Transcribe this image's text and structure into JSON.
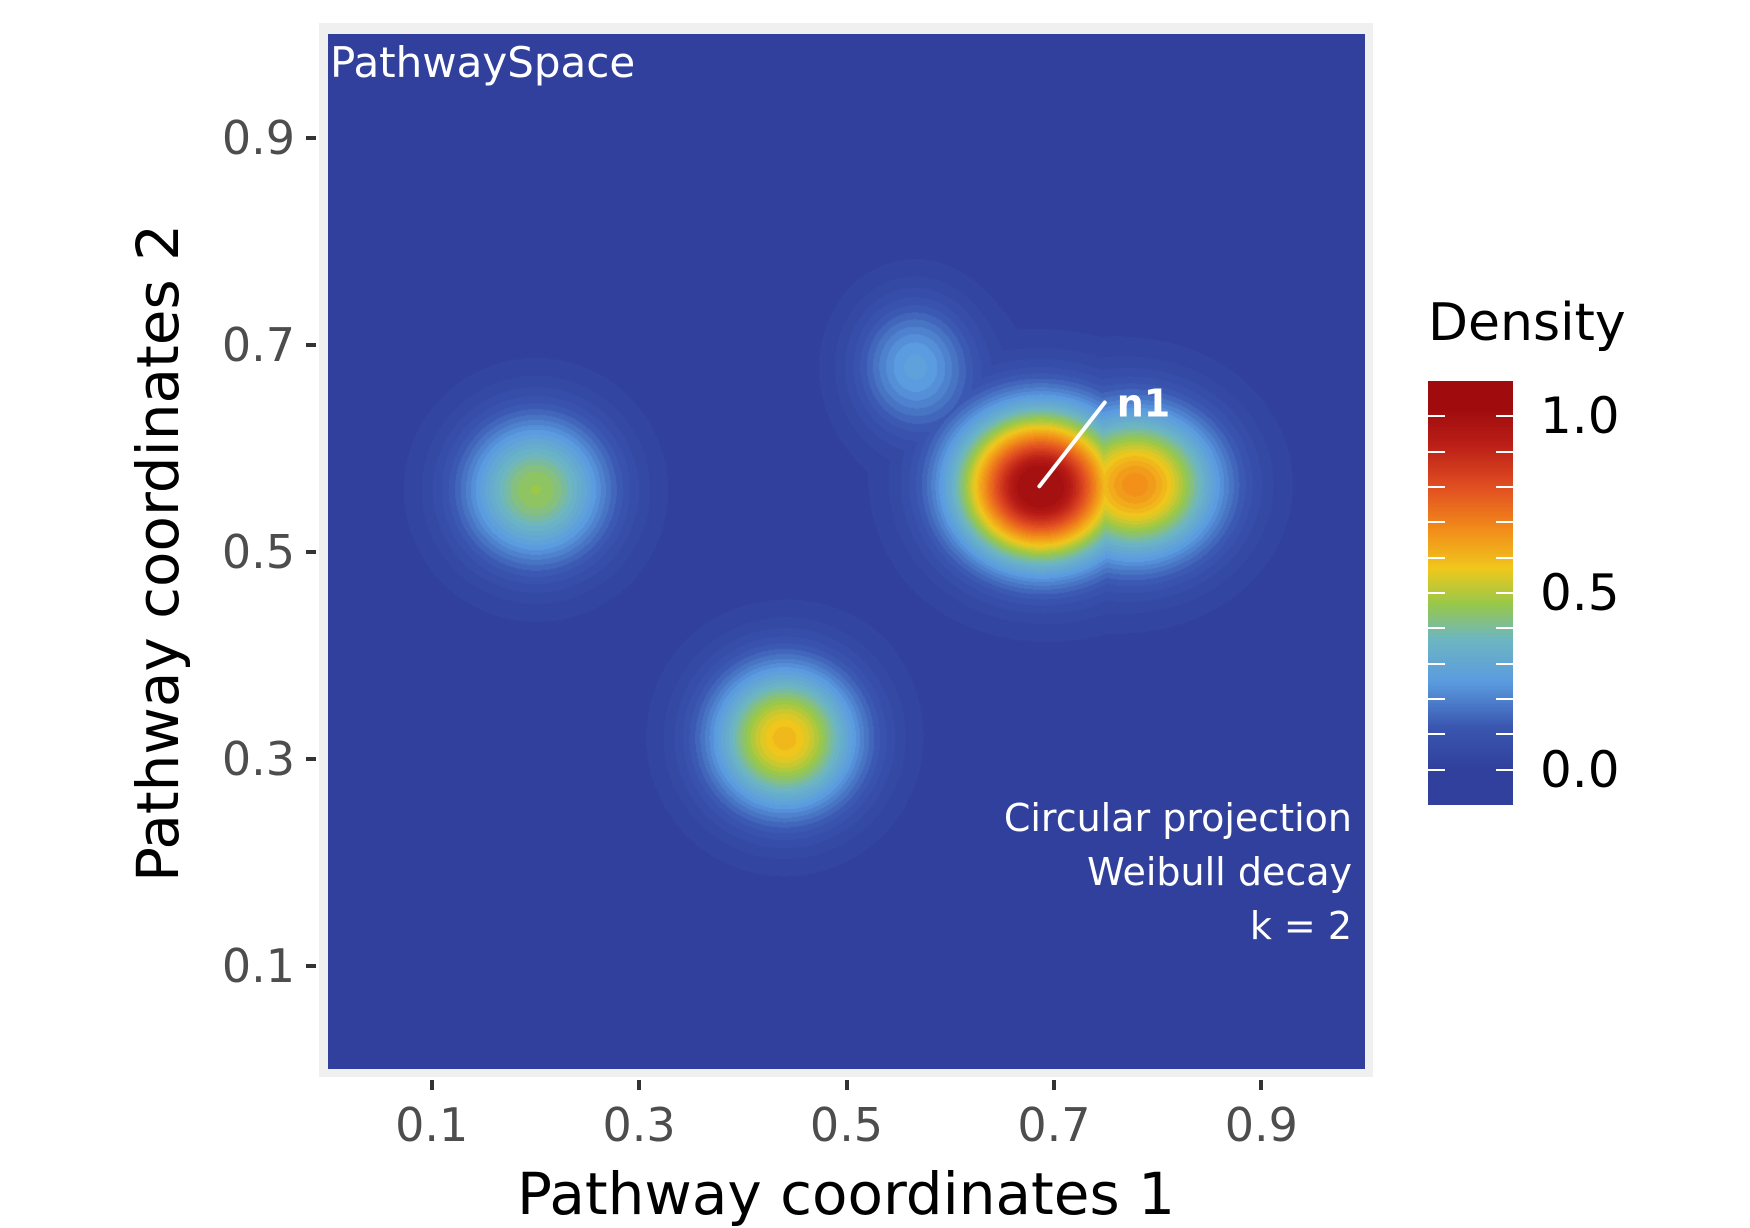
{
  "chart_data": {
    "type": "heatmap",
    "title": "PathwaySpace",
    "xlabel": "Pathway coordinates 1",
    "ylabel": "Pathway coordinates 2",
    "xlim": [
      0,
      1
    ],
    "ylim": [
      0,
      1
    ],
    "xticks": [
      0.1,
      0.3,
      0.5,
      0.7,
      0.9
    ],
    "yticks": [
      0.1,
      0.3,
      0.5,
      0.7,
      0.9
    ],
    "xtick_labels": [
      "0.1",
      "0.3",
      "0.5",
      "0.7",
      "0.9"
    ],
    "ytick_labels": [
      "0.1",
      "0.3",
      "0.5",
      "0.7",
      "0.9"
    ],
    "grid": false,
    "annotations": [
      "Circular projection",
      "Weibull decay",
      "k = 2"
    ],
    "peaks": [
      {
        "x": 0.2,
        "y": 0.56,
        "value": 0.45,
        "sx": 0.05,
        "sy": 0.05
      },
      {
        "x": 0.44,
        "y": 0.32,
        "value": 0.58,
        "sx": 0.05,
        "sy": 0.05
      },
      {
        "x": 0.565,
        "y": 0.68,
        "value": 0.26,
        "sx": 0.04,
        "sy": 0.045
      },
      {
        "x": 0.686,
        "y": 0.563,
        "value": 1.0,
        "sx": 0.055,
        "sy": 0.05
      },
      {
        "x": 0.78,
        "y": 0.565,
        "value": 0.62,
        "sx": 0.055,
        "sy": 0.05
      }
    ],
    "labeled_node": {
      "label": "n1",
      "x": 0.686,
      "y": 0.563,
      "label_x": 0.749,
      "label_y": 0.644
    },
    "legend": {
      "title": "Density",
      "position": "right",
      "range": [
        -0.1,
        1.1
      ],
      "breaks": [
        0.0,
        0.5,
        1.0
      ],
      "break_labels": [
        "0.0",
        "0.5",
        "1.0"
      ],
      "colors": [
        {
          "v": 0.0,
          "c": "#30409c"
        },
        {
          "v": 0.12,
          "c": "#3a56b0"
        },
        {
          "v": 0.25,
          "c": "#5b9ce0"
        },
        {
          "v": 0.37,
          "c": "#6db6c2"
        },
        {
          "v": 0.47,
          "c": "#98c84a"
        },
        {
          "v": 0.57,
          "c": "#f0c81c"
        },
        {
          "v": 0.68,
          "c": "#f28d1a"
        },
        {
          "v": 0.8,
          "c": "#e24f22"
        },
        {
          "v": 0.92,
          "c": "#bb1f17"
        },
        {
          "v": 1.02,
          "c": "#a00c0e"
        }
      ]
    }
  }
}
